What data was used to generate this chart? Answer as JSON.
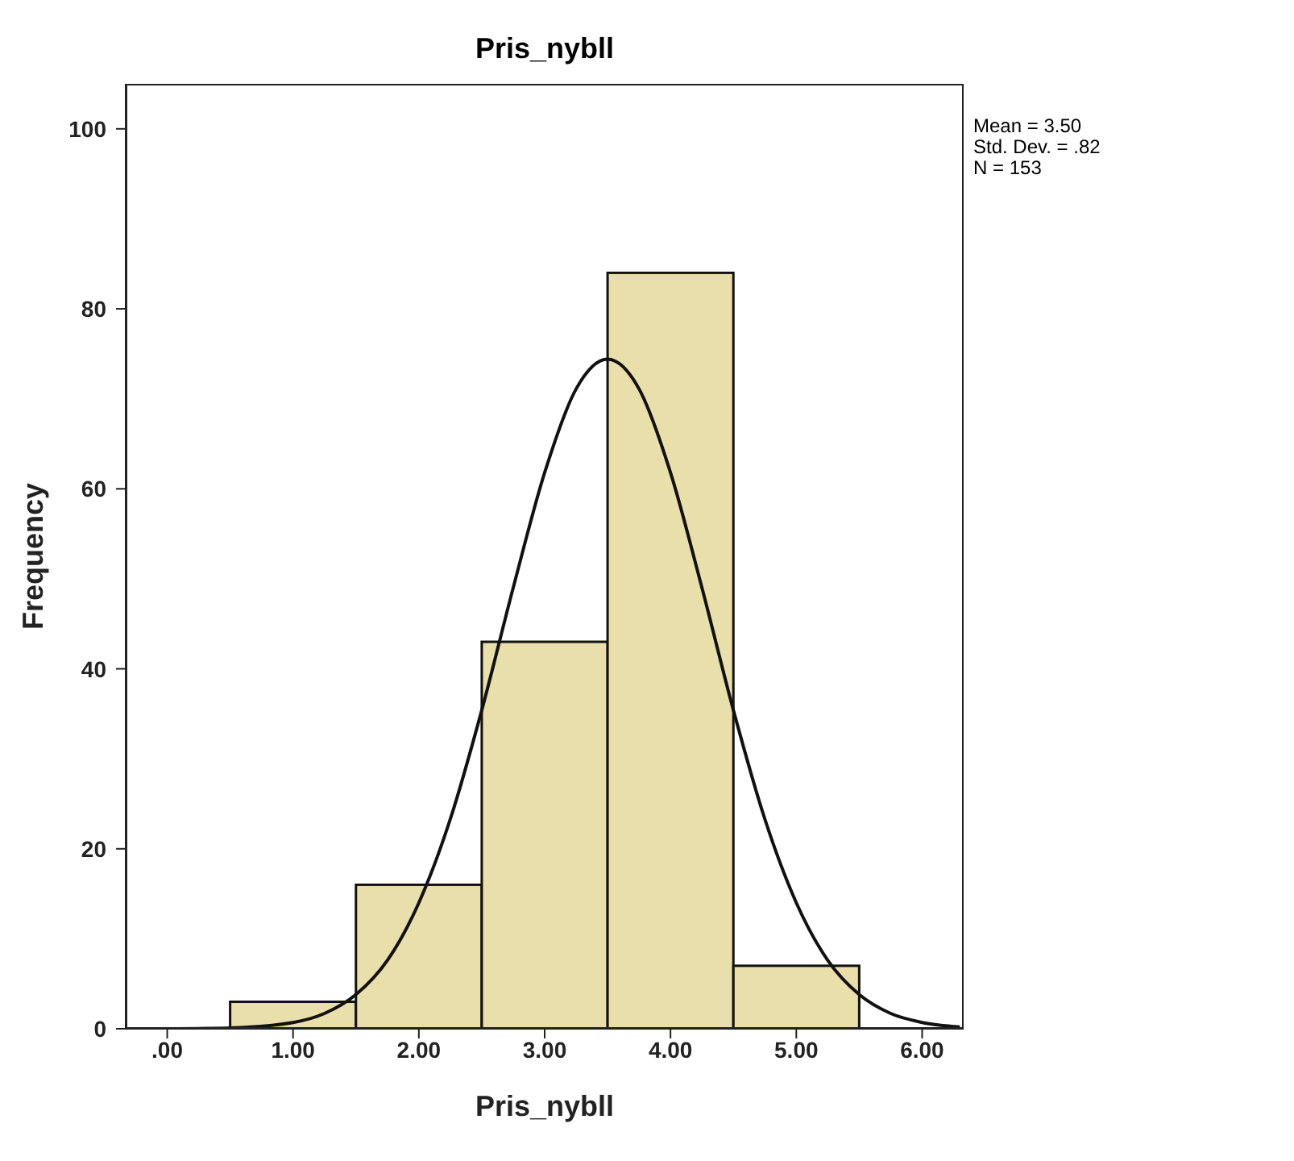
{
  "chart_data": {
    "type": "histogram",
    "title": "Pris_nybll",
    "xlabel": "Pris_nybll",
    "ylabel": "Frequency",
    "bins": [
      0.5,
      1.5,
      2.5,
      3.5,
      4.5,
      5.5
    ],
    "values": [
      3,
      16,
      43,
      84,
      7
    ],
    "color": "#e8dfaa",
    "xlim": [
      -0.33,
      6.33
    ],
    "xticks": [
      {
        "value": 0,
        "label": ".00"
      },
      {
        "value": 1,
        "label": "1.00"
      },
      {
        "value": 2,
        "label": "2.00"
      },
      {
        "value": 3,
        "label": "3.00"
      },
      {
        "value": 4,
        "label": "4.00"
      },
      {
        "value": 5,
        "label": "5.00"
      },
      {
        "value": 6,
        "label": "6.00"
      }
    ],
    "ylim": [
      0,
      105
    ],
    "yticks": [
      0,
      20,
      40,
      60,
      80,
      100
    ],
    "annotations": [
      "Mean = 3.50",
      "Std. Dev. = .82",
      "N = 153"
    ],
    "series": [
      {
        "type": "line",
        "color": "#111111",
        "marker": "none",
        "x": [
          0,
          0.5,
          1,
          1.25,
          1.5,
          1.75,
          2,
          2.25,
          2.5,
          2.75,
          3,
          3.25,
          3.5,
          3.75,
          4,
          4.25,
          4.5,
          4.75,
          5,
          5.25,
          5.5,
          5.75,
          6,
          6.3
        ],
        "values": [
          0,
          0.1,
          0.7,
          1.7,
          3.8,
          7.6,
          14,
          23.3,
          35.4,
          49,
          61.8,
          71.1,
          74.4,
          71.1,
          61.8,
          49,
          35.4,
          23.3,
          14,
          7.6,
          3.8,
          1.7,
          0.7,
          0.2
        ]
      }
    ]
  }
}
